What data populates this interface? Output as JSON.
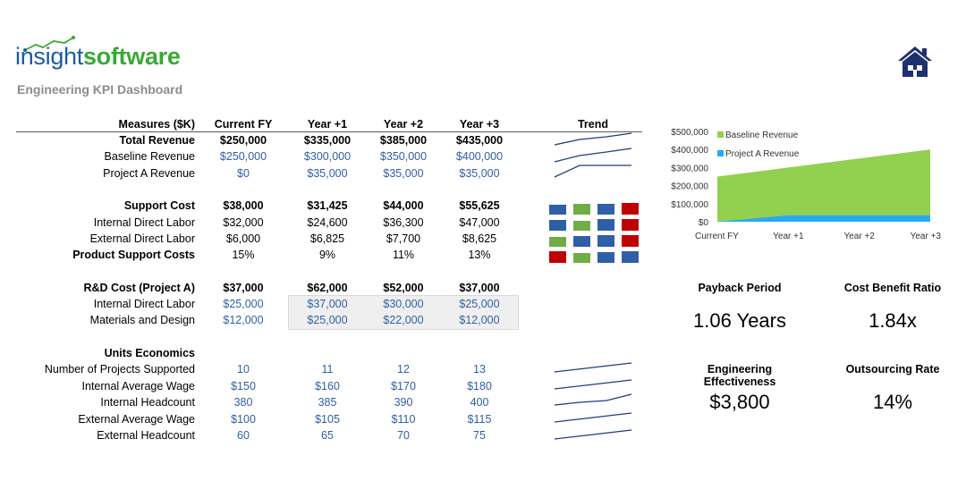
{
  "brand": {
    "part1": "insight",
    "part2": "software",
    "color1": "#1a5aa8",
    "color2": "#3aa935"
  },
  "subtitle": "Engineering KPI Dashboard",
  "home_icon": "home-icon",
  "table": {
    "headers": [
      "Measures ($K)",
      "Current FY",
      "Year +1",
      "Year +2",
      "Year +3",
      "Trend"
    ],
    "rows": [
      {
        "label": "Total Revenue",
        "bold": true,
        "values": [
          "$250,000",
          "$335,000",
          "$385,000",
          "$435,000"
        ]
      },
      {
        "label": "Baseline Revenue",
        "values": [
          "$250,000",
          "$300,000",
          "$350,000",
          "$400,000"
        ],
        "blue": true
      },
      {
        "label": "Project A Revenue",
        "values": [
          "$0",
          "$35,000",
          "$35,000",
          "$35,000"
        ],
        "blue": true
      },
      {
        "label": "Support Cost",
        "bold": true,
        "values": [
          "$38,000",
          "$31,425",
          "$44,000",
          "$55,625"
        ]
      },
      {
        "label": "Internal Direct Labor",
        "values": [
          "$32,000",
          "$24,600",
          "$36,300",
          "$47,000"
        ]
      },
      {
        "label": "External Direct Labor",
        "values": [
          "$6,000",
          "$6,825",
          "$7,700",
          "$8,625"
        ]
      },
      {
        "label": "Product Support Costs",
        "bold_label": true,
        "values": [
          "15%",
          "9%",
          "11%",
          "13%"
        ]
      },
      {
        "label": "R&D Cost (Project A)",
        "bold": true,
        "values": [
          "$37,000",
          "$62,000",
          "$52,000",
          "$37,000"
        ]
      },
      {
        "label": "Internal Direct Labor",
        "values": [
          "$25,000",
          "$37,000",
          "$30,000",
          "$25,000"
        ],
        "blue": true
      },
      {
        "label": "Materials and Design",
        "values": [
          "$12,000",
          "$25,000",
          "$22,000",
          "$12,000"
        ],
        "blue": true
      },
      {
        "label": "Units Economics",
        "bold": true,
        "values": [
          "",
          "",
          "",
          ""
        ]
      },
      {
        "label": "Number of Projects Supported",
        "values": [
          "10",
          "11",
          "12",
          "13"
        ],
        "blue": true
      },
      {
        "label": "Internal Average Wage",
        "values": [
          "$150",
          "$160",
          "$170",
          "$180"
        ],
        "blue": true
      },
      {
        "label": "Internal Headcount",
        "values": [
          "380",
          "385",
          "390",
          "400"
        ],
        "blue": true
      },
      {
        "label": "External Average Wage",
        "values": [
          "$100",
          "$105",
          "$110",
          "$115"
        ],
        "blue": true
      },
      {
        "label": "External Headcount",
        "values": [
          "60",
          "65",
          "70",
          "75"
        ],
        "blue": true
      }
    ]
  },
  "trend_colors": {
    "line": "#1f3d7a",
    "blue": "#2f5fa7",
    "green": "#70ad47",
    "red": "#c00000"
  },
  "icon_trend": [
    [
      "blue",
      "green",
      "blue",
      "red"
    ],
    [
      "blue",
      "green",
      "blue",
      "red"
    ],
    [
      "green",
      "blue",
      "blue",
      "red"
    ],
    [
      "red",
      "green",
      "blue",
      "blue"
    ]
  ],
  "icon_trend_levels": [
    [
      0.5,
      0.6,
      0.6,
      0.8
    ],
    [
      0.6,
      0.5,
      0.7,
      0.8
    ],
    [
      0.5,
      0.6,
      0.7,
      0.8
    ],
    [
      0.8,
      0.5,
      0.6,
      0.7
    ]
  ],
  "chart_data": {
    "type": "area",
    "categories": [
      "Current FY",
      "Year +1",
      "Year +2",
      "Year +3"
    ],
    "series": [
      {
        "name": "Baseline Revenue",
        "values": [
          250000,
          300000,
          350000,
          400000
        ],
        "color": "#92d050"
      },
      {
        "name": "Project A Revenue",
        "values": [
          0,
          35000,
          35000,
          35000
        ],
        "color": "#2aa8f2"
      }
    ],
    "y_ticks": [
      "$0",
      "$100,000",
      "$200,000",
      "$300,000",
      "$400,000",
      "$500,000"
    ],
    "ylim": [
      0,
      500000
    ],
    "legend": "top-left",
    "grid": false,
    "stacked": false
  },
  "kpis": [
    {
      "label": "Payback Period",
      "value": "1.06 Years"
    },
    {
      "label": "Cost Benefit Ratio",
      "value": "1.84x"
    },
    {
      "label": "Engineering Effectiveness",
      "value": "$3,800"
    },
    {
      "label": "Outsourcing Rate",
      "value": "14%"
    }
  ]
}
